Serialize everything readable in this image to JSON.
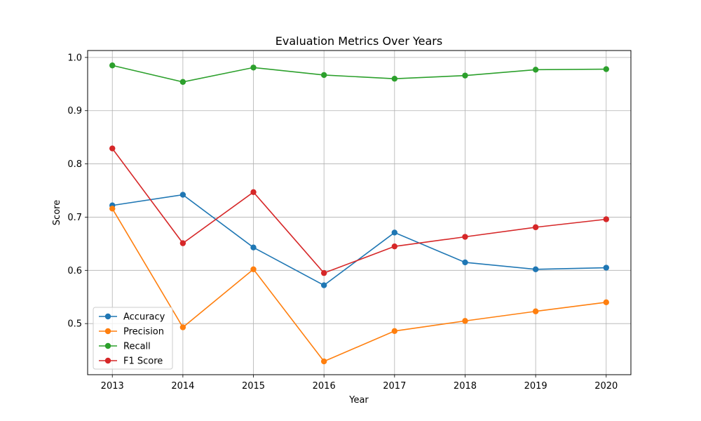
{
  "chart_data": {
    "type": "line",
    "title": "Evaluation Metrics Over Years",
    "xlabel": "Year",
    "ylabel": "Score",
    "x": [
      2013,
      2014,
      2015,
      2016,
      2017,
      2018,
      2019,
      2020
    ],
    "xlim": [
      2012.65,
      2020.35
    ],
    "ylim": [
      0.404,
      1.013
    ],
    "yticks": [
      0.5,
      0.6,
      0.7,
      0.8,
      0.9,
      1.0
    ],
    "ytick_labels": [
      "0.5",
      "0.6",
      "0.7",
      "0.8",
      "0.9",
      "1.0"
    ],
    "xtick_labels": [
      "2013",
      "2014",
      "2015",
      "2016",
      "2017",
      "2018",
      "2019",
      "2020"
    ],
    "grid": true,
    "legend_position": "lower-left",
    "series": [
      {
        "name": "Accuracy",
        "color": "#1f77b4",
        "values": [
          0.722,
          0.742,
          0.643,
          0.572,
          0.671,
          0.615,
          0.602,
          0.605
        ]
      },
      {
        "name": "Precision",
        "color": "#ff7f0e",
        "values": [
          0.716,
          0.493,
          0.602,
          0.429,
          0.486,
          0.505,
          0.523,
          0.54
        ]
      },
      {
        "name": "Recall",
        "color": "#2ca02c",
        "values": [
          0.985,
          0.954,
          0.981,
          0.967,
          0.96,
          0.966,
          0.977,
          0.978
        ]
      },
      {
        "name": "F1 Score",
        "color": "#d62728",
        "values": [
          0.829,
          0.651,
          0.747,
          0.595,
          0.645,
          0.663,
          0.681,
          0.696
        ]
      }
    ]
  }
}
